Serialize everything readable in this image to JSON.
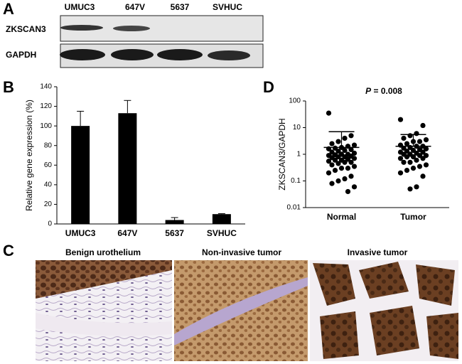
{
  "panel_labels": [
    "A",
    "B",
    "C",
    "D"
  ],
  "blot": {
    "lanes": [
      "UMUC3",
      "647V",
      "5637",
      "SVHUC"
    ],
    "rows": [
      "ZKSCAN3",
      "GAPDH"
    ]
  },
  "histology": {
    "titles": [
      "Benign urothelium",
      "Non-invasive tumor",
      "Invasive tumor"
    ]
  },
  "chart_data": [
    {
      "type": "bar",
      "ylabel": "Relative gene expression (%)",
      "categories": [
        "UMUC3",
        "647V",
        "5637",
        "SVHUC"
      ],
      "values": [
        100,
        113,
        4,
        10
      ],
      "errors": [
        15,
        13,
        2.5,
        0.5
      ],
      "color": "#000000",
      "ylim": [
        0,
        140
      ],
      "yticks": [
        0,
        20,
        40,
        60,
        80,
        100,
        120,
        140
      ]
    },
    {
      "type": "dot",
      "ylabel": "ZKSCAN3/GAPDH",
      "annotation_italic": "P",
      "annotation": "= 0.008",
      "categories": [
        "Normal",
        "Tumor"
      ],
      "log": true,
      "color": "#000000",
      "values": [
        [
          35,
          5,
          4,
          3,
          2.5,
          2.2,
          2,
          1.8,
          1.7,
          1.6,
          1.5,
          1.4,
          1.3,
          1.2,
          1.1,
          1,
          1,
          0.95,
          0.9,
          0.85,
          0.8,
          0.8,
          0.75,
          0.7,
          0.65,
          0.6,
          0.6,
          0.55,
          0.5,
          0.5,
          0.45,
          0.4,
          0.35,
          0.3,
          0.3,
          0.25,
          0.2,
          0.15,
          0.12,
          0.1,
          0.08,
          0.06,
          0.04
        ],
        [
          20,
          12,
          6,
          5,
          4,
          3.5,
          3,
          3,
          2.5,
          2.2,
          2,
          2,
          1.8,
          1.7,
          1.6,
          1.5,
          1.4,
          1.3,
          1.2,
          1.2,
          1.1,
          1,
          1,
          0.9,
          0.9,
          0.8,
          0.8,
          0.7,
          0.7,
          0.6,
          0.5,
          0.5,
          0.4,
          0.35,
          0.3,
          0.25,
          0.2,
          0.15,
          0.06,
          0.05
        ]
      ],
      "means": [
        1.8,
        2.0
      ],
      "sd_upper": [
        7,
        5.5
      ],
      "ylim": [
        0.01,
        100
      ],
      "yticks": [
        0.01,
        0.1,
        1,
        10,
        100
      ]
    }
  ]
}
